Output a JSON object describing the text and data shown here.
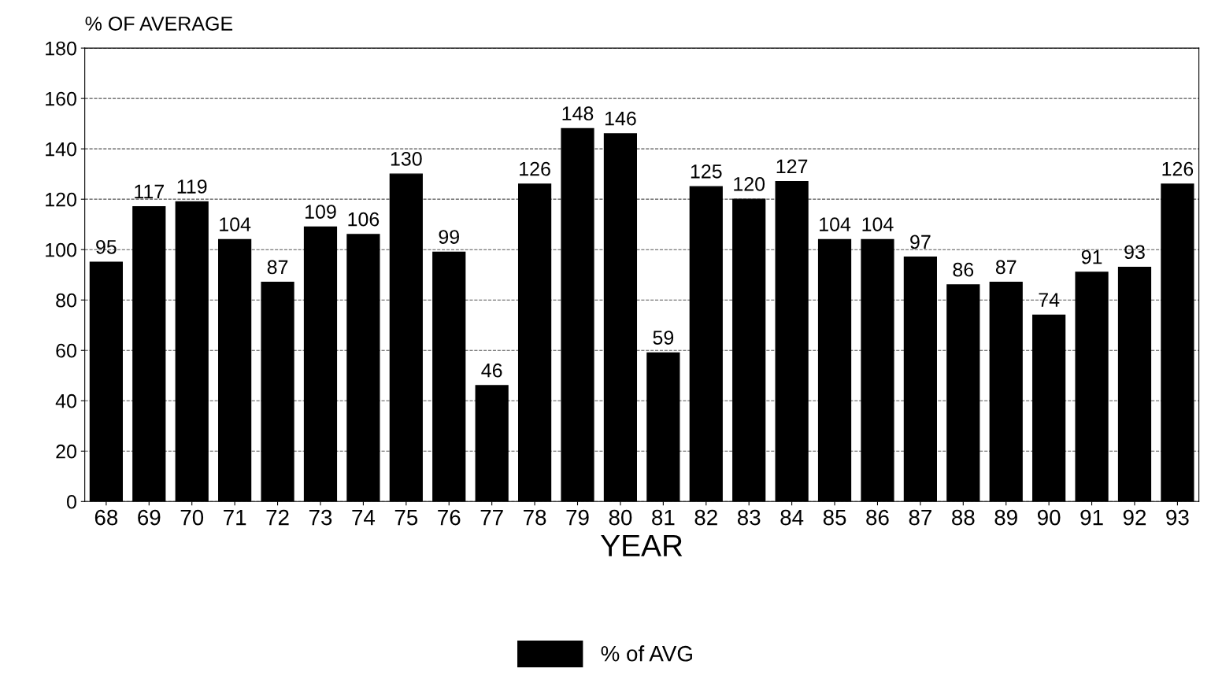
{
  "chart_data": {
    "type": "bar",
    "ylabel": "% OF AVERAGE",
    "xlabel": "YEAR",
    "categories": [
      "68",
      "69",
      "70",
      "71",
      "72",
      "73",
      "74",
      "75",
      "76",
      "77",
      "78",
      "79",
      "80",
      "81",
      "82",
      "83",
      "84",
      "85",
      "86",
      "87",
      "88",
      "89",
      "90",
      "91",
      "92",
      "93"
    ],
    "series": [
      {
        "name": "% of AVG",
        "color": "#000000",
        "values": [
          95,
          117,
          119,
          104,
          87,
          109,
          106,
          130,
          99,
          46,
          126,
          148,
          146,
          59,
          125,
          120,
          127,
          104,
          104,
          97,
          86,
          87,
          74,
          91,
          93,
          126
        ]
      }
    ],
    "ylim": [
      0,
      180
    ],
    "yticks": [
      0,
      20,
      40,
      60,
      80,
      100,
      120,
      140,
      160,
      180
    ],
    "grid": "y",
    "legend": "bottom",
    "data_labels": true
  }
}
